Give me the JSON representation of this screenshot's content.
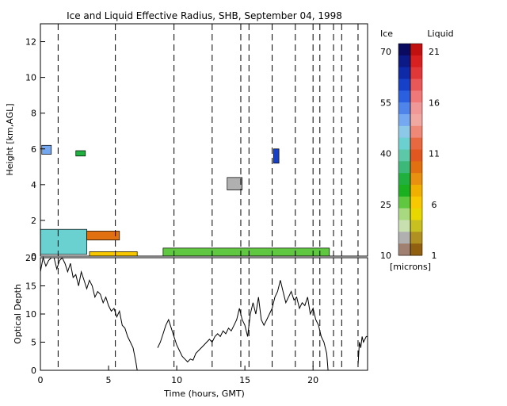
{
  "chart_data": [
    {
      "type": "heatmap",
      "title": "Ice and Liquid Effective Radius, SHB, September 04, 1998",
      "ylabel": "Height [km,AGL]",
      "xlim": [
        0,
        24
      ],
      "ylim": [
        0,
        13
      ],
      "y_ticks": [
        0,
        2,
        4,
        6,
        8,
        10,
        12
      ],
      "x_ticks": [
        0,
        5,
        10,
        15,
        20
      ],
      "dashed_times": [
        1.3,
        5.5,
        9.8,
        12.6,
        14.7,
        15.3,
        17.0,
        18.7,
        20.0,
        20.5,
        21.5,
        22.1,
        23.3
      ],
      "ice_regions": [
        {
          "t0": 0.1,
          "t1": 0.8,
          "h0": 5.7,
          "h1": 6.2
        },
        {
          "t0": 2.6,
          "t1": 3.3,
          "h0": 5.6,
          "h1": 5.9
        },
        {
          "t0": 13.7,
          "t1": 14.8,
          "h0": 3.7,
          "h1": 4.4
        },
        {
          "t0": 17.1,
          "t1": 17.5,
          "h0": 5.2,
          "h1": 6.0
        },
        {
          "t0": 0.0,
          "t1": 3.4,
          "h0": 0.1,
          "h1": 1.5
        },
        {
          "t0": 9.0,
          "t1": 21.2,
          "h0": 0.0,
          "h1": 0.45
        }
      ],
      "liquid_regions": [
        {
          "t0": 3.4,
          "t1": 5.8,
          "h0": 0.9,
          "h1": 1.4
        },
        {
          "t0": 3.6,
          "t1": 7.1,
          "h0": 0.0,
          "h1": 0.25
        }
      ],
      "colorbar": {
        "ice_label": "Ice",
        "liquid_label": "Liquid",
        "units": "[microns]",
        "ice_ticks": [
          "70",
          "55",
          "40",
          "25",
          "10"
        ],
        "liquid_ticks": [
          "21",
          "16",
          "11",
          "6",
          "1"
        ],
        "ice_colors": [
          "#0a0a60",
          "#0c1a88",
          "#0e2aa8",
          "#1640c8",
          "#2a60e0",
          "#4f85ea",
          "#74a8f0",
          "#8cc8e8",
          "#6ad0d0",
          "#5cc8a8",
          "#3cb878",
          "#20b040",
          "#1ab020",
          "#60c840",
          "#a8d880",
          "#c8e0b0",
          "#b0b0b0",
          "#a08070"
        ],
        "liquid_colors": [
          "#c01010",
          "#d82020",
          "#e03838",
          "#e85858",
          "#f07878",
          "#f09898",
          "#f0a8a0",
          "#f08878",
          "#e86840",
          "#e05820",
          "#e07010",
          "#e89010",
          "#f0b000",
          "#f8c800",
          "#e8d800",
          "#c8c020",
          "#b09020",
          "#906010"
        ]
      }
    },
    {
      "type": "line",
      "ylabel": "Optical Depth",
      "xlabel": "Time (hours, GMT)",
      "xlim": [
        0,
        24
      ],
      "ylim": [
        0,
        20
      ],
      "y_ticks": [
        0,
        5,
        10,
        15,
        20
      ],
      "x_ticks": [
        0,
        5,
        10,
        15,
        20
      ],
      "series": [
        {
          "x": [
            0.0,
            0.2,
            0.4,
            0.6,
            0.8,
            1.0,
            1.2,
            1.4,
            1.6,
            1.8,
            2.0,
            2.2,
            2.4,
            2.6,
            2.8,
            3.0,
            3.2,
            3.4,
            3.6,
            3.8,
            4.0,
            4.2,
            4.4,
            4.6,
            4.8,
            5.0,
            5.2,
            5.4,
            5.6,
            5.8,
            6.0,
            6.2,
            6.4,
            6.6,
            6.8,
            7.0,
            7.1
          ],
          "y": [
            17.5,
            20,
            18.5,
            19.5,
            20,
            20,
            18,
            19.5,
            20,
            19,
            17.5,
            19,
            16.5,
            17,
            15,
            17.5,
            16,
            14.5,
            16,
            15,
            13,
            14,
            13.5,
            12,
            13,
            11.5,
            10.5,
            11,
            9.5,
            10.5,
            8,
            7.5,
            6,
            5,
            4,
            1.5,
            0
          ]
        },
        {
          "x": [
            8.6,
            8.8,
            9.0,
            9.2,
            9.4,
            9.6,
            9.8,
            10.0,
            10.2,
            10.4,
            10.6,
            10.8,
            11.0,
            11.2,
            11.4,
            11.6,
            11.8,
            12.0,
            12.2,
            12.4,
            12.6,
            12.8,
            13.0,
            13.2,
            13.4,
            13.6,
            13.8,
            14.0,
            14.2,
            14.4,
            14.6,
            14.8,
            15.0,
            15.2,
            15.4,
            15.6,
            15.8,
            16.0,
            16.2,
            16.4,
            16.6,
            16.8,
            17.0,
            17.2,
            17.4,
            17.6,
            17.8,
            18.0,
            18.2,
            18.4,
            18.6,
            18.8,
            19.0,
            19.2,
            19.4,
            19.6,
            19.8,
            20.0,
            20.2,
            20.4,
            20.6,
            20.8,
            21.0,
            21.1
          ],
          "y": [
            4,
            5,
            6.5,
            8,
            9,
            7.5,
            6,
            4.5,
            3.5,
            2.5,
            2,
            1.5,
            2,
            1.8,
            3,
            3.5,
            4,
            4.5,
            5,
            5.5,
            5,
            6,
            6.5,
            6,
            7,
            6.5,
            7.5,
            7,
            8,
            9,
            11,
            9,
            8,
            6,
            10,
            12,
            10,
            13,
            9,
            8,
            9,
            10,
            11,
            13,
            14,
            16,
            14,
            12,
            13,
            14,
            12.5,
            13,
            11,
            12,
            11.5,
            13,
            10,
            11,
            9,
            8,
            6,
            5,
            3,
            0
          ]
        },
        {
          "x": [
            23.3,
            23.4,
            23.5,
            23.6,
            23.7,
            23.8,
            23.9,
            24.0
          ],
          "y": [
            1,
            5,
            4,
            6,
            5,
            5.5,
            6,
            6
          ]
        }
      ]
    }
  ]
}
